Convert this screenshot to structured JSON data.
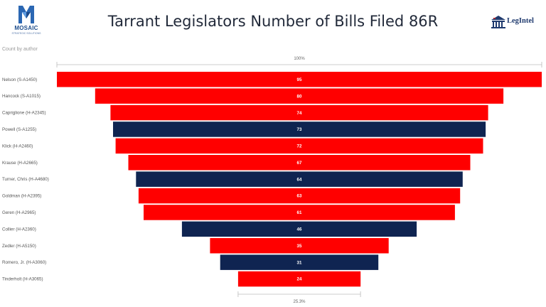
{
  "header": {
    "title": "Tarrant Legislators Number of Bills Filed 86R",
    "logo_left": {
      "name": "MOSAIC",
      "tagline": "STRATEGIC SOLUTIONS",
      "icon": "mosaic-m-icon"
    },
    "logo_right": {
      "name": "LegIntel",
      "icon": "capitol-building-icon"
    }
  },
  "chart_data": {
    "type": "funnel",
    "subtitle": "Count by author",
    "top_percent_label": "100%",
    "bottom_percent_label": "25.3%",
    "categories": [
      "Nelson (S-A1450)",
      "Hancock (S-A1015)",
      "Capriglione (H-A2345)",
      "Powell (S-A1255)",
      "Klick (H-A2460)",
      "Krause (H-A2665)",
      "Turner, Chris (H-A4680)",
      "Goldman (H-A2395)",
      "Geren (H-A2965)",
      "Collier (H-A2360)",
      "Zedler (H-A5150)",
      "Romero, Jr. (H-A3060)",
      "Tinderholt (H-A3065)"
    ],
    "values": [
      95,
      80,
      74,
      73,
      72,
      67,
      64,
      63,
      61,
      46,
      35,
      31,
      24
    ],
    "bar_colors": [
      "#ff0000",
      "#ff0000",
      "#ff0000",
      "#0f2451",
      "#ff0000",
      "#ff0000",
      "#0f2451",
      "#ff0000",
      "#ff0000",
      "#0f2451",
      "#ff0000",
      "#0f2451",
      "#ff0000"
    ],
    "max_value": 95
  }
}
